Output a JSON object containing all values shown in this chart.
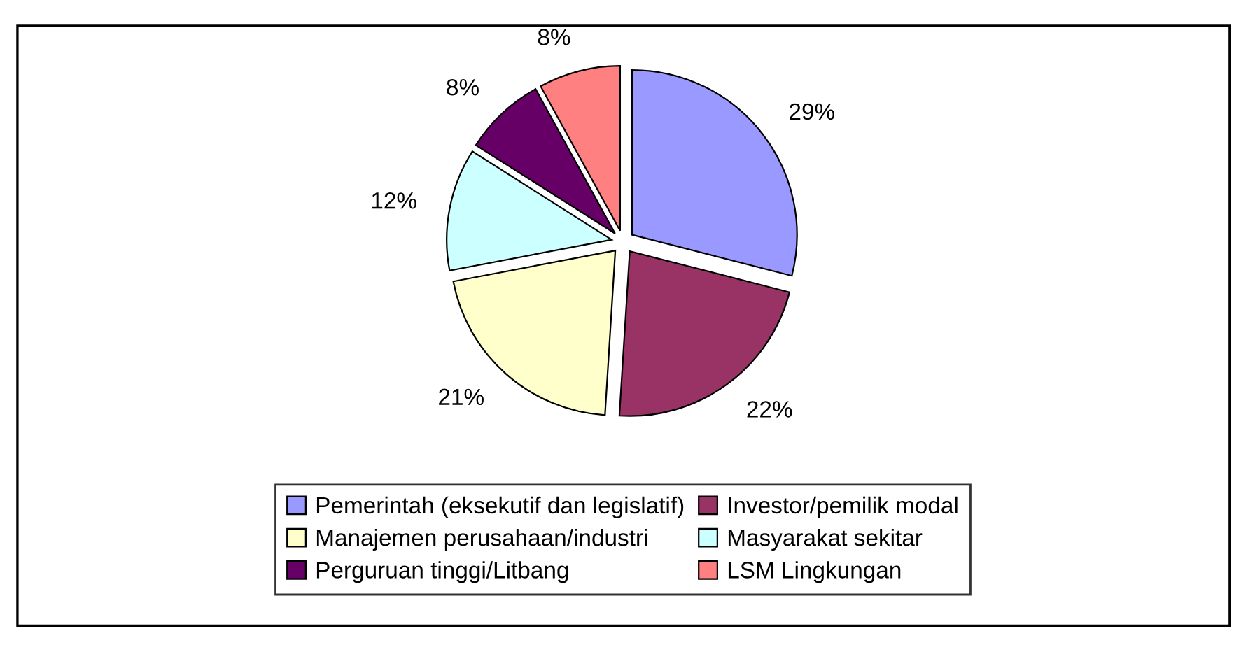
{
  "chart_data": {
    "type": "pie",
    "categories": [
      "Pemerintah (eksekutif dan legislatif)",
      "Investor/pemilik modal",
      "Manajemen perusahaan/industri",
      "Masyarakat sekitar",
      "Perguruan tinggi/Litbang",
      "LSM Lingkungan"
    ],
    "values": [
      29,
      22,
      21,
      12,
      8,
      8
    ],
    "value_labels": [
      "29%",
      "22%",
      "21%",
      "12%",
      "8%",
      "8%"
    ],
    "colors": [
      "#9999ff",
      "#993366",
      "#ffffcc",
      "#ccffff",
      "#660066",
      "#ff8080"
    ],
    "legend": "bottom"
  }
}
